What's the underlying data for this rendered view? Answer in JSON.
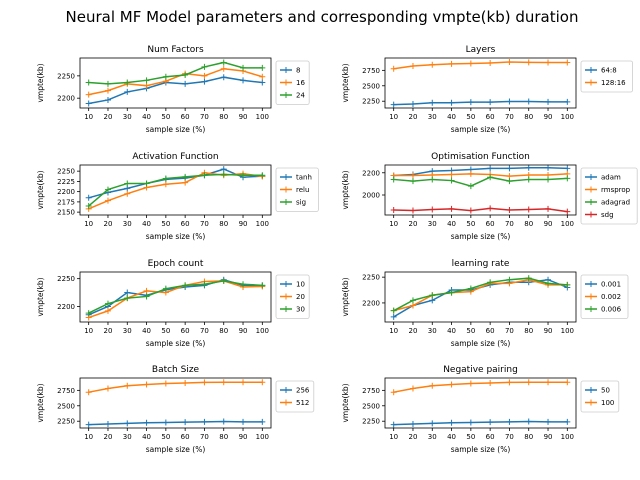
{
  "figure": {
    "title": "Neural MF Model parameters and corresponding vmpte(kb) duration"
  },
  "chart_data": [
    {
      "type": "line",
      "title": "Num Factors",
      "xlabel": "sample size (%)",
      "ylabel": "vmpte(kb)",
      "x": [
        10,
        20,
        30,
        40,
        50,
        60,
        70,
        80,
        90,
        100
      ],
      "xticks": [
        10,
        20,
        30,
        40,
        50,
        60,
        70,
        80,
        90,
        100
      ],
      "ylim": [
        2178,
        2290
      ],
      "yticks": [
        2200,
        2250
      ],
      "legend": "right",
      "series": [
        {
          "name": "8",
          "color": "#1f77b4",
          "values": [
            2188,
            2196,
            2214,
            2222,
            2235,
            2232,
            2237,
            2247,
            2240,
            2235
          ]
        },
        {
          "name": "16",
          "color": "#ff7f0e",
          "values": [
            2208,
            2217,
            2232,
            2228,
            2238,
            2255,
            2250,
            2266,
            2261,
            2248
          ]
        },
        {
          "name": "24",
          "color": "#2ca02c",
          "values": [
            2235,
            2232,
            2235,
            2240,
            2248,
            2252,
            2270,
            2280,
            2268,
            2268
          ]
        }
      ]
    },
    {
      "type": "line",
      "title": "Layers",
      "xlabel": "sample size (%)",
      "ylabel": "vmpte(kb)",
      "x": [
        10,
        20,
        30,
        40,
        50,
        60,
        70,
        80,
        90,
        100
      ],
      "xticks": [
        10,
        20,
        30,
        40,
        50,
        60,
        70,
        80,
        90,
        100
      ],
      "ylim": [
        2140,
        2950
      ],
      "yticks": [
        2250,
        2500,
        2750
      ],
      "legend": "right",
      "series": [
        {
          "name": "64:8",
          "color": "#1f77b4",
          "values": [
            2195,
            2205,
            2225,
            2225,
            2235,
            2235,
            2245,
            2245,
            2240,
            2240
          ]
        },
        {
          "name": "128:16",
          "color": "#ff7f0e",
          "values": [
            2775,
            2820,
            2840,
            2855,
            2860,
            2870,
            2885,
            2880,
            2878,
            2878
          ]
        }
      ]
    },
    {
      "type": "line",
      "title": "Activation Function",
      "xlabel": "sample size (%)",
      "ylabel": "vmpte(kb)",
      "x": [
        10,
        20,
        30,
        40,
        50,
        60,
        70,
        80,
        90,
        100
      ],
      "xticks": [
        10,
        20,
        30,
        40,
        50,
        60,
        70,
        80,
        90,
        100
      ],
      "ylim": [
        2143,
        2265
      ],
      "yticks": [
        2150,
        2175,
        2200,
        2225,
        2250
      ],
      "legend": "right",
      "series": [
        {
          "name": "tanh",
          "color": "#1f77b4",
          "values": [
            2185,
            2198,
            2208,
            2220,
            2230,
            2233,
            2240,
            2255,
            2235,
            2238
          ]
        },
        {
          "name": "relu",
          "color": "#ff7f0e",
          "values": [
            2158,
            2178,
            2195,
            2210,
            2218,
            2222,
            2246,
            2240,
            2244,
            2237
          ]
        },
        {
          "name": "sig",
          "color": "#2ca02c",
          "values": [
            2165,
            2205,
            2220,
            2220,
            2232,
            2236,
            2240,
            2242,
            2240,
            2240
          ]
        }
      ]
    },
    {
      "type": "line",
      "title": "Optimisation Function",
      "xlabel": "sample size (%)",
      "ylabel": "vmpte(kb)",
      "x": [
        10,
        20,
        30,
        40,
        50,
        60,
        70,
        80,
        90,
        100
      ],
      "xticks": [
        10,
        20,
        30,
        40,
        50,
        60,
        70,
        80,
        90,
        100
      ],
      "ylim": [
        1820,
        2270
      ],
      "yticks": [
        2000,
        2200
      ],
      "legend": "right",
      "series": [
        {
          "name": "adam",
          "color": "#1f77b4",
          "values": [
            2175,
            2185,
            2215,
            2220,
            2230,
            2240,
            2240,
            2245,
            2245,
            2240
          ]
        },
        {
          "name": "rmsprop",
          "color": "#ff7f0e",
          "values": [
            2175,
            2175,
            2180,
            2185,
            2190,
            2185,
            2170,
            2180,
            2180,
            2190
          ]
        },
        {
          "name": "adagrad",
          "color": "#2ca02c",
          "values": [
            2140,
            2125,
            2140,
            2130,
            2080,
            2160,
            2125,
            2140,
            2140,
            2150
          ]
        },
        {
          "name": "sdg",
          "color": "#d62728",
          "values": [
            1865,
            1860,
            1870,
            1875,
            1860,
            1880,
            1865,
            1870,
            1875,
            1850
          ]
        }
      ]
    },
    {
      "type": "line",
      "title": "Epoch count",
      "xlabel": "sample size (%)",
      "ylabel": "vmpte(kb)",
      "x": [
        10,
        20,
        30,
        40,
        50,
        60,
        70,
        80,
        90,
        100
      ],
      "xticks": [
        10,
        20,
        30,
        40,
        50,
        60,
        70,
        80,
        90,
        100
      ],
      "ylim": [
        2172,
        2262
      ],
      "yticks": [
        2200,
        2250
      ],
      "legend": "right",
      "series": [
        {
          "name": "10",
          "color": "#1f77b4",
          "values": [
            2185,
            2200,
            2225,
            2220,
            2230,
            2235,
            2238,
            2248,
            2238,
            2238
          ]
        },
        {
          "name": "20",
          "color": "#ff7f0e",
          "values": [
            2180,
            2192,
            2215,
            2228,
            2225,
            2238,
            2245,
            2246,
            2235,
            2236
          ]
        },
        {
          "name": "30",
          "color": "#2ca02c",
          "values": [
            2188,
            2205,
            2215,
            2218,
            2232,
            2238,
            2240,
            2246,
            2240,
            2238
          ]
        }
      ]
    },
    {
      "type": "line",
      "title": "learning rate",
      "xlabel": "sample size (%)",
      "ylabel": "vmpte(kb)",
      "x": [
        10,
        20,
        30,
        40,
        50,
        60,
        70,
        80,
        90,
        100
      ],
      "xticks": [
        10,
        20,
        30,
        40,
        50,
        60,
        70,
        80,
        90,
        100
      ],
      "ylim": [
        2163,
        2260
      ],
      "yticks": [
        2200,
        2250
      ],
      "legend": "right",
      "series": [
        {
          "name": "0.001",
          "color": "#1f77b4",
          "values": [
            2173,
            2195,
            2205,
            2225,
            2225,
            2235,
            2240,
            2240,
            2245,
            2230
          ]
        },
        {
          "name": "0.002",
          "color": "#ff7f0e",
          "values": [
            2185,
            2195,
            2215,
            2220,
            2222,
            2238,
            2238,
            2245,
            2235,
            2235
          ]
        },
        {
          "name": "0.006",
          "color": "#2ca02c",
          "values": [
            2185,
            2205,
            2215,
            2220,
            2228,
            2240,
            2245,
            2248,
            2238,
            2235
          ]
        }
      ]
    },
    {
      "type": "line",
      "title": "Batch Size",
      "xlabel": "sample size (%)",
      "ylabel": "vmpte(kb)",
      "x": [
        10,
        20,
        30,
        40,
        50,
        60,
        70,
        80,
        90,
        100
      ],
      "xticks": [
        10,
        20,
        30,
        40,
        50,
        60,
        70,
        80,
        90,
        100
      ],
      "ylim": [
        2140,
        2950
      ],
      "yticks": [
        2250,
        2500,
        2750
      ],
      "legend": "right",
      "series": [
        {
          "name": "256",
          "color": "#1f77b4",
          "values": [
            2195,
            2205,
            2215,
            2225,
            2230,
            2235,
            2240,
            2245,
            2240,
            2240
          ]
        },
        {
          "name": "512",
          "color": "#ff7f0e",
          "values": [
            2720,
            2780,
            2825,
            2845,
            2860,
            2870,
            2880,
            2882,
            2882,
            2882
          ]
        }
      ]
    },
    {
      "type": "line",
      "title": "Negative pairing",
      "xlabel": "sample size (%)",
      "ylabel": "vmpte(kb)",
      "x": [
        10,
        20,
        30,
        40,
        50,
        60,
        70,
        80,
        90,
        100
      ],
      "xticks": [
        10,
        20,
        30,
        40,
        50,
        60,
        70,
        80,
        90,
        100
      ],
      "ylim": [
        2140,
        2950
      ],
      "yticks": [
        2250,
        2500,
        2750
      ],
      "legend": "right",
      "series": [
        {
          "name": "50",
          "color": "#1f77b4",
          "values": [
            2195,
            2205,
            2215,
            2225,
            2230,
            2235,
            2240,
            2245,
            2240,
            2240
          ]
        },
        {
          "name": "100",
          "color": "#ff7f0e",
          "values": [
            2720,
            2780,
            2825,
            2845,
            2860,
            2870,
            2880,
            2882,
            2882,
            2882
          ]
        }
      ]
    }
  ]
}
